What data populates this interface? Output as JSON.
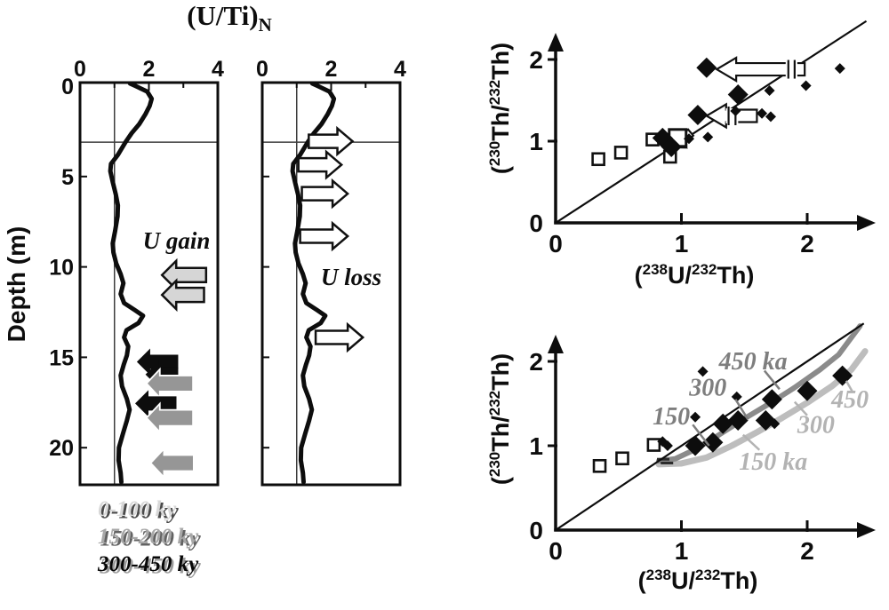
{
  "figure": {
    "background": "#ffffff"
  },
  "chart_data": [
    {
      "id": "uti-profile-gain",
      "type": "line",
      "title_main": "(U/Ti)",
      "title_sub": "N",
      "ylabel": "Depth (m)",
      "x_ticks": [
        0,
        2,
        4
      ],
      "x_minor_ticks": [
        1,
        3
      ],
      "y_ticks": [
        0,
        5,
        10,
        15,
        20
      ],
      "xlim": [
        0,
        4
      ],
      "depth_lim": [
        0,
        22.2
      ],
      "ref_line_x": 1,
      "ref_line_depth": 3.1,
      "annotation": {
        "text": "U gain",
        "x": 2.8,
        "depth": 8.55
      },
      "profile": [
        [
          1.45,
          -0.15
        ],
        [
          1.62,
          0.0
        ],
        [
          1.95,
          0.3
        ],
        [
          2.08,
          0.7
        ],
        [
          2.02,
          1.1
        ],
        [
          1.9,
          1.55
        ],
        [
          1.72,
          2.1
        ],
        [
          1.5,
          2.6
        ],
        [
          1.32,
          3.1
        ],
        [
          1.1,
          3.8
        ],
        [
          0.9,
          4.3
        ],
        [
          0.88,
          4.7
        ],
        [
          0.95,
          5.3
        ],
        [
          1.04,
          6.0
        ],
        [
          1.1,
          6.6
        ],
        [
          1.09,
          7.2
        ],
        [
          1.02,
          8.0
        ],
        [
          0.95,
          8.7
        ],
        [
          0.97,
          9.2
        ],
        [
          1.05,
          9.8
        ],
        [
          1.18,
          10.4
        ],
        [
          1.26,
          10.9
        ],
        [
          1.18,
          11.5
        ],
        [
          1.28,
          12.0
        ],
        [
          1.6,
          12.4
        ],
        [
          1.83,
          12.7
        ],
        [
          1.7,
          13.1
        ],
        [
          1.35,
          13.5
        ],
        [
          1.28,
          13.9
        ],
        [
          1.4,
          14.4
        ],
        [
          1.36,
          14.9
        ],
        [
          1.27,
          15.4
        ],
        [
          1.18,
          16.0
        ],
        [
          1.22,
          16.6
        ],
        [
          1.36,
          17.3
        ],
        [
          1.44,
          17.9
        ],
        [
          1.36,
          18.5
        ],
        [
          1.25,
          19.2
        ],
        [
          1.13,
          20.0
        ],
        [
          1.12,
          20.7
        ],
        [
          1.18,
          21.4
        ],
        [
          1.2,
          21.9
        ]
      ],
      "arrows": [
        {
          "style": "lightgray",
          "tip": 2.38,
          "tail": 3.66,
          "depth": 10.45
        },
        {
          "style": "lightgray",
          "tip": 2.38,
          "tail": 3.6,
          "depth": 11.55
        },
        {
          "style": "black",
          "tip": 1.65,
          "tail": 2.85,
          "depth": 15.25
        },
        {
          "style": "black",
          "tip": 1.9,
          "tail": 2.85,
          "depth": 15.95
        },
        {
          "style": "gray",
          "tip": 1.93,
          "tail": 3.28,
          "depth": 16.45
        },
        {
          "style": "black",
          "tip": 1.6,
          "tail": 2.8,
          "depth": 17.55
        },
        {
          "style": "gray",
          "tip": 1.93,
          "tail": 3.28,
          "depth": 18.35
        },
        {
          "style": "gray",
          "tip": 2.05,
          "tail": 3.3,
          "depth": 20.85
        }
      ],
      "legend": [
        {
          "label": "0-100 ky",
          "color": "#d8d8d8",
          "shadow": "#4a4a4a"
        },
        {
          "label": "150-200 ky",
          "color": "#a8a8a8",
          "shadow": "#636363"
        },
        {
          "label": "300-450 ky",
          "color": "#070707",
          "shadow": "#9b9b9b"
        }
      ]
    },
    {
      "id": "uti-profile-loss",
      "type": "line",
      "x_ticks": [
        0,
        2,
        4
      ],
      "x_minor_ticks": [
        1,
        3
      ],
      "y_ticks": [
        0,
        5,
        10,
        15,
        20
      ],
      "xlim": [
        0,
        4
      ],
      "depth_lim": [
        0,
        22.2
      ],
      "ref_line_x": 1,
      "ref_line_depth": 3.1,
      "annotation": {
        "text": "U loss",
        "x": 2.58,
        "depth": 10.55
      },
      "profile_same_as": "uti-profile-gain",
      "arrows": [
        {
          "style": "white",
          "tail": 1.35,
          "tip": 2.62,
          "depth": 3.05
        },
        {
          "style": "white",
          "tail": 1.05,
          "tip": 2.3,
          "depth": 4.35
        },
        {
          "style": "white",
          "tail": 1.15,
          "tip": 2.48,
          "depth": 5.95
        },
        {
          "style": "white",
          "tail": 1.1,
          "tip": 2.48,
          "depth": 8.3
        },
        {
          "style": "white",
          "tail": 1.55,
          "tip": 2.92,
          "depth": 13.9
        }
      ]
    },
    {
      "id": "isochron-observed",
      "type": "scatter",
      "xlabel": "(238U/232Th)",
      "ylabel": "(230Th/232Th)",
      "xlabel_parts": [
        "(",
        "238",
        "U/",
        "232",
        "Th)"
      ],
      "ylabel_parts": [
        "(",
        "230",
        "Th/",
        "232",
        "Th)"
      ],
      "x_ticks": [
        0,
        1,
        2
      ],
      "y_ticks": [
        0,
        1,
        2
      ],
      "xlim": [
        0,
        2.5
      ],
      "ylim": [
        0,
        2.5
      ],
      "equiline": [
        [
          0,
          0
        ],
        [
          2.47,
          2.47
        ]
      ],
      "series": {
        "large_diamonds": [
          [
            1.2,
            1.9
          ],
          [
            1.45,
            1.57
          ],
          [
            1.13,
            1.32
          ],
          [
            0.85,
            1.04
          ],
          [
            0.92,
            0.93
          ]
        ],
        "small_diamonds": [
          [
            2.26,
            1.89
          ],
          [
            1.99,
            1.68
          ],
          [
            1.7,
            1.62
          ],
          [
            1.64,
            1.34
          ],
          [
            1.71,
            1.3
          ],
          [
            1.43,
            1.37
          ],
          [
            1.21,
            1.05
          ],
          [
            1.06,
            1.03
          ]
        ],
        "open_squares": [
          [
            0.34,
            0.78
          ],
          [
            0.52,
            0.86
          ],
          [
            0.77,
            1.02
          ],
          [
            0.91,
            0.81
          ]
        ],
        "large_open_square": [
          [
            0.97,
            1.04
          ]
        ]
      },
      "arrows": [
        {
          "tip": 1.28,
          "tail": 1.98,
          "y": 1.88,
          "gap": [
            1.85,
            1.9
          ]
        },
        {
          "tip": 1.2,
          "tail": 1.6,
          "y": 1.31,
          "gap": [
            1.375,
            1.43
          ]
        },
        {
          "type": "small",
          "x": 0.933,
          "y": 0.924,
          "rotate": -40
        }
      ]
    },
    {
      "id": "isochron-model",
      "type": "scatter",
      "xlabel": "(238U/232Th)",
      "ylabel": "(230Th/232Th)",
      "xlabel_parts": [
        "(",
        "238",
        "U/",
        "232",
        "Th)"
      ],
      "ylabel_parts": [
        "(",
        "230",
        "Th/",
        "232",
        "Th)"
      ],
      "x_ticks": [
        0,
        1,
        2
      ],
      "y_ticks": [
        0,
        1,
        2
      ],
      "xlim": [
        0,
        2.5
      ],
      "ylim": [
        0,
        2.5
      ],
      "equiline": [
        [
          0,
          0
        ],
        [
          2.45,
          2.45
        ]
      ],
      "series": {
        "large_diamonds": [
          [
            1.11,
            1.0
          ],
          [
            1.25,
            1.04
          ],
          [
            1.33,
            1.26
          ],
          [
            1.45,
            1.3
          ],
          [
            1.67,
            1.3
          ],
          [
            1.72,
            1.55
          ],
          [
            2.0,
            1.65
          ],
          [
            2.28,
            1.83
          ]
        ],
        "small_diamonds": [
          [
            1.17,
            1.88
          ],
          [
            1.44,
            1.58
          ],
          [
            1.11,
            1.34
          ],
          [
            0.85,
            1.05
          ],
          [
            0.89,
            1.0
          ],
          [
            1.74,
            1.26
          ]
        ],
        "open_squares": [
          [
            0.35,
            0.76
          ],
          [
            0.53,
            0.85
          ],
          [
            0.78,
            1.01
          ]
        ]
      },
      "curves": [
        {
          "name": "evolution curve (lower)",
          "shade": "light",
          "color": "#bdbdbd",
          "width": 7,
          "points": [
            [
              0.82,
              0.78
            ],
            [
              1.0,
              0.79
            ],
            [
              1.2,
              0.86
            ],
            [
              1.4,
              1.0
            ],
            [
              1.6,
              1.16
            ],
            [
              1.8,
              1.33
            ],
            [
              2.0,
              1.51
            ],
            [
              2.2,
              1.71
            ],
            [
              2.35,
              1.9
            ],
            [
              2.46,
              2.12
            ]
          ]
        },
        {
          "name": "evolution curve (upper)",
          "shade": "dark",
          "color": "#8b8b8b",
          "width": 6,
          "points": [
            [
              0.82,
              0.82
            ],
            [
              0.95,
              0.845
            ],
            [
              1.1,
              0.95
            ],
            [
              1.3,
              1.13
            ],
            [
              1.5,
              1.32
            ],
            [
              1.7,
              1.5
            ],
            [
              1.9,
              1.69
            ],
            [
              2.1,
              1.9
            ],
            [
              2.25,
              2.08
            ],
            [
              2.42,
              2.42
            ]
          ]
        }
      ],
      "curve_start_ticks": [
        [
          0.855,
          0.84
        ],
        [
          0.885,
          0.795
        ]
      ],
      "age_labels": [
        {
          "text": "450 ka",
          "shade": "dark",
          "x": 1.57,
          "y": 2.01,
          "leader": [
            [
              1.66,
              1.89
            ],
            [
              1.78,
              1.67
            ]
          ]
        },
        {
          "text": "300",
          "shade": "dark",
          "x": 1.21,
          "y": 1.7,
          "leader": [
            [
              1.43,
              1.55
            ],
            [
              1.53,
              1.31
            ]
          ]
        },
        {
          "text": "150",
          "shade": "dark",
          "x": 0.92,
          "y": 1.36,
          "leader": [
            [
              1.09,
              1.25
            ],
            [
              1.22,
              1.0
            ]
          ]
        },
        {
          "text": "450",
          "shade": "light",
          "x": 2.34,
          "y": 1.56,
          "leader": [
            [
              2.31,
              1.77
            ],
            [
              2.36,
              1.64
            ]
          ]
        },
        {
          "text": "300",
          "shade": "light",
          "x": 2.07,
          "y": 1.26,
          "leader": [
            [
              1.9,
              1.52
            ],
            [
              2.0,
              1.36
            ]
          ]
        },
        {
          "text": "150 ka",
          "shade": "light",
          "x": 1.73,
          "y": 0.82,
          "leader": [
            [
              1.49,
              1.13
            ],
            [
              1.62,
              0.95
            ]
          ]
        }
      ]
    }
  ]
}
